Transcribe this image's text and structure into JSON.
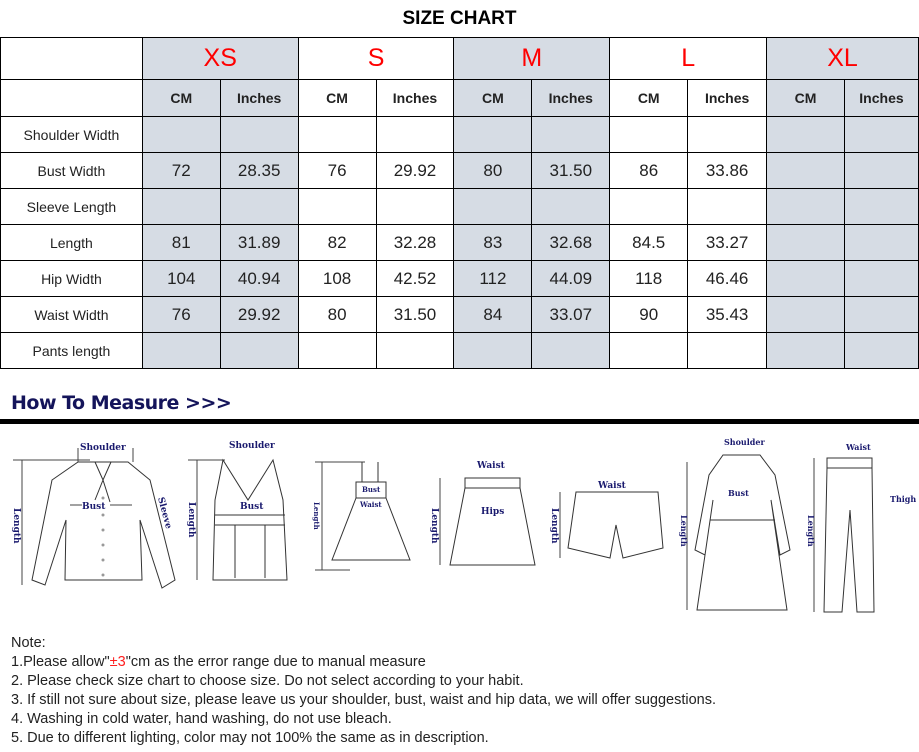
{
  "title": "SIZE CHART",
  "sizes": [
    "XS",
    "S",
    "M",
    "L",
    "XL"
  ],
  "units": [
    "CM",
    "Inches"
  ],
  "rows": [
    {
      "label": "Shoulder Width",
      "values": [
        "",
        "",
        "",
        "",
        "",
        "",
        "",
        "",
        "",
        ""
      ]
    },
    {
      "label": "Bust Width",
      "values": [
        "72",
        "28.35",
        "76",
        "29.92",
        "80",
        "31.50",
        "86",
        "33.86",
        "",
        ""
      ]
    },
    {
      "label": "Sleeve Length",
      "values": [
        "",
        "",
        "",
        "",
        "",
        "",
        "",
        "",
        "",
        ""
      ]
    },
    {
      "label": "Length",
      "values": [
        "81",
        "31.89",
        "82",
        "32.28",
        "83",
        "32.68",
        "84.5",
        "33.27",
        "",
        ""
      ]
    },
    {
      "label": "Hip Width",
      "values": [
        "104",
        "40.94",
        "108",
        "42.52",
        "112",
        "44.09",
        "118",
        "46.46",
        "",
        ""
      ]
    },
    {
      "label": "Waist Width",
      "values": [
        "76",
        "29.92",
        "80",
        "31.50",
        "84",
        "33.07",
        "90",
        "35.43",
        "",
        ""
      ]
    },
    {
      "label": "Pants length",
      "values": [
        "",
        "",
        "",
        "",
        "",
        "",
        "",
        "",
        "",
        ""
      ]
    }
  ],
  "colors": {
    "size_label": "#ff0000",
    "shaded_column": "#d6dce4",
    "heading": "#14145a"
  },
  "how_to_measure": "How To Measure >>>",
  "diagram_labels": {
    "shoulder": "Shoulder",
    "bust": "Bust",
    "sleeve": "Sleeve",
    "length": "Length",
    "waist": "Waist",
    "hips": "Hips",
    "thigh": "Thigh"
  },
  "notes": {
    "heading": "Note:",
    "n1_pre": "1.Please allow\"",
    "n1_red": "±3",
    "n1_post": "\"cm as the error range due to manual measure",
    "n2": "2. Please check size chart to choose size. Do not select according to your habit.",
    "n3": "3. If still not sure about size, please leave us your shoulder, bust, waist and hip data, we will offer suggestions.",
    "n4": "4. Washing in cold water, hand washing, do not use bleach.",
    "n5": "5. Due to different lighting, color may not 100% the same as in description."
  }
}
